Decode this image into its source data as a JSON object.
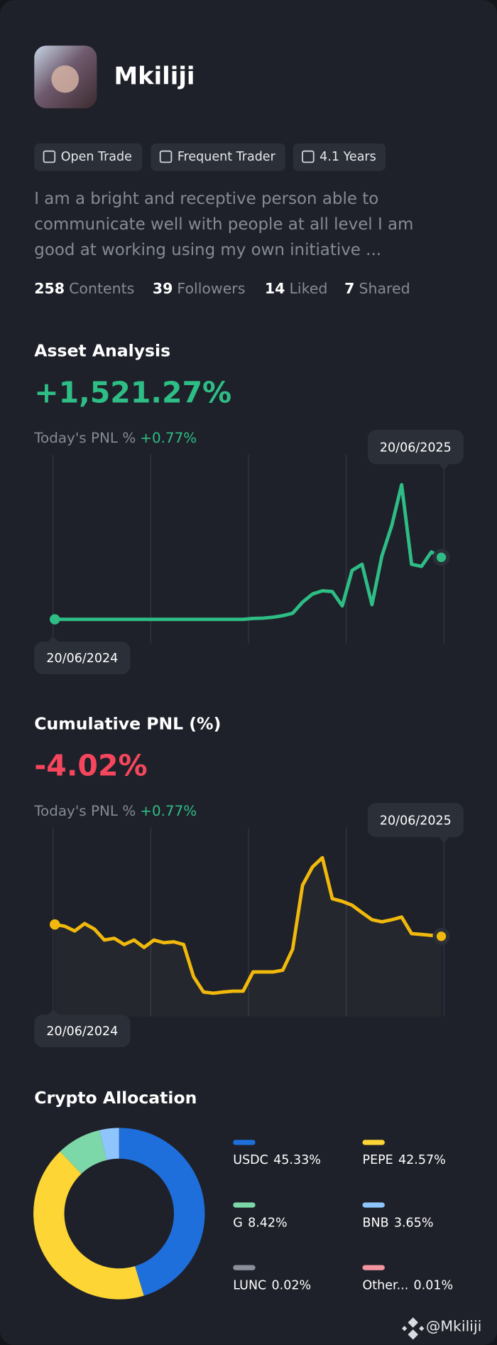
{
  "profile": {
    "name": "Mkiliji",
    "tags": [
      "Open Trade",
      "Frequent Trader",
      "4.1 Years"
    ],
    "bio_lines": [
      "I am a bright and receptive person able to",
      "communicate well with people at all level I am",
      "good at working using my own initiative ..."
    ],
    "stats": [
      {
        "value": 258,
        "label": "Contents"
      },
      {
        "value": 39,
        "label": "Followers"
      },
      {
        "value": 14,
        "label": "Liked"
      },
      {
        "value": 7,
        "label": "Shared"
      }
    ],
    "watermark": "@Mkiliji"
  },
  "chart_data": [
    {
      "type": "line",
      "title": "Asset Analysis",
      "headline": "+1,521.27%",
      "pnl_label": "Today's PNL %",
      "pnl_value": "+0.77%",
      "start_label": "20/06/2024",
      "end_label": "20/06/2025",
      "color": "#2ebd85",
      "values": [
        0,
        0,
        0,
        0,
        0,
        0,
        0,
        0,
        0,
        0,
        0,
        0,
        0,
        0,
        0,
        0,
        0,
        0,
        0,
        0,
        20,
        30,
        50,
        90,
        150,
        420,
        620,
        700,
        680,
        330,
        1200,
        1350,
        360,
        1550,
        2300,
        3300,
        1350,
        1300,
        1650,
        1520
      ]
    },
    {
      "type": "line",
      "title": "Cumulative PNL (%)",
      "headline": "-4.02%",
      "pnl_label": "Today's PNL %",
      "pnl_value": "+0.77%",
      "start_label": "20/06/2024",
      "end_label": "20/06/2025",
      "color": "#f0b90b",
      "area": true,
      "values": [
        0,
        -0.6,
        -2.2,
        0.3,
        -1.6,
        -5.3,
        -4.7,
        -6.8,
        -5.3,
        -7.8,
        -5.3,
        -6.2,
        -5.9,
        -6.8,
        -17.7,
        -22.9,
        -23.3,
        -22.9,
        -22.6,
        -22.6,
        -16.1,
        -16.1,
        -16.1,
        -15.5,
        -8.4,
        13.3,
        19.5,
        22.6,
        8.7,
        7.8,
        6.5,
        4.0,
        1.6,
        0.9,
        1.6,
        2.5,
        -3.1,
        -3.4,
        -3.7,
        -4.02
      ]
    },
    {
      "type": "donut",
      "title": "Crypto Allocation",
      "categories": [
        "USDC",
        "PEPE",
        "G",
        "BNB",
        "LUNC",
        "Other..."
      ],
      "values": [
        45.33,
        42.57,
        8.42,
        3.65,
        0.02,
        0.01
      ],
      "value_labels": [
        "45.33%",
        "42.57%",
        "8.42%",
        "3.65%",
        "0.02%",
        "0.01%"
      ],
      "colors": [
        "#1e6fdc",
        "#fdd534",
        "#7dd8a9",
        "#8ec5fc",
        "#8a8f99",
        "#f4959f"
      ]
    }
  ]
}
